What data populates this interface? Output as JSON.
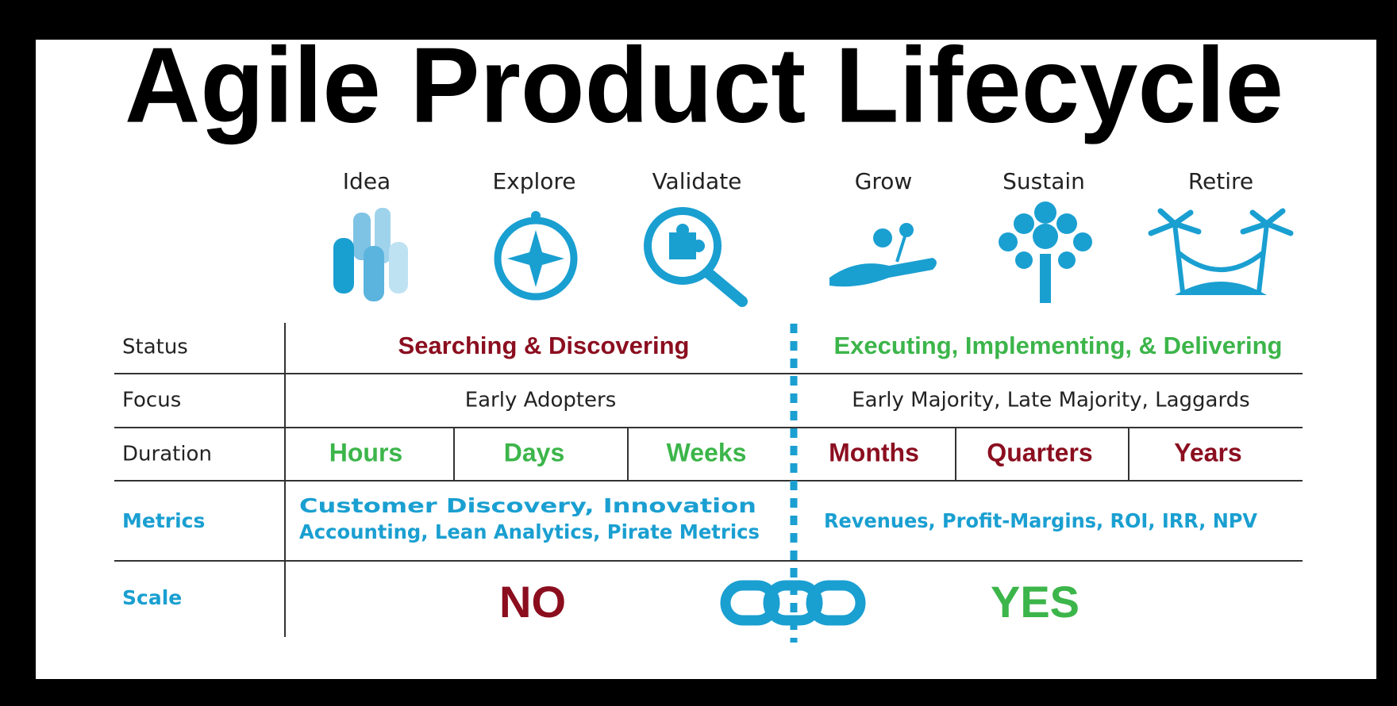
{
  "title": "Agile Product Lifecycle",
  "stages": [
    "Idea",
    "Explore",
    "Validate",
    "Grow",
    "Sustain",
    "Retire"
  ],
  "table": {
    "status": {
      "label": "Status",
      "left": "Searching & Discovering",
      "right": "Executing, Implementing, & Delivering"
    },
    "focus": {
      "label": "Focus",
      "left": "Early Adopters",
      "right": "Early Majority, Late Majority, Laggards"
    },
    "duration": {
      "label": "Duration",
      "values": [
        "Hours",
        "Days",
        "Weeks",
        "Months",
        "Quarters",
        "Years"
      ]
    },
    "metrics": {
      "label": "Metrics",
      "left": [
        "Customer Discovery, Innovation",
        "Accounting, Lean Analytics, Pirate Metrics"
      ],
      "right": "Revenues, Profit-Margins, ROI, IRR, NPV"
    },
    "scale": {
      "label": "Scale",
      "left": "NO",
      "right": "YES"
    }
  }
}
